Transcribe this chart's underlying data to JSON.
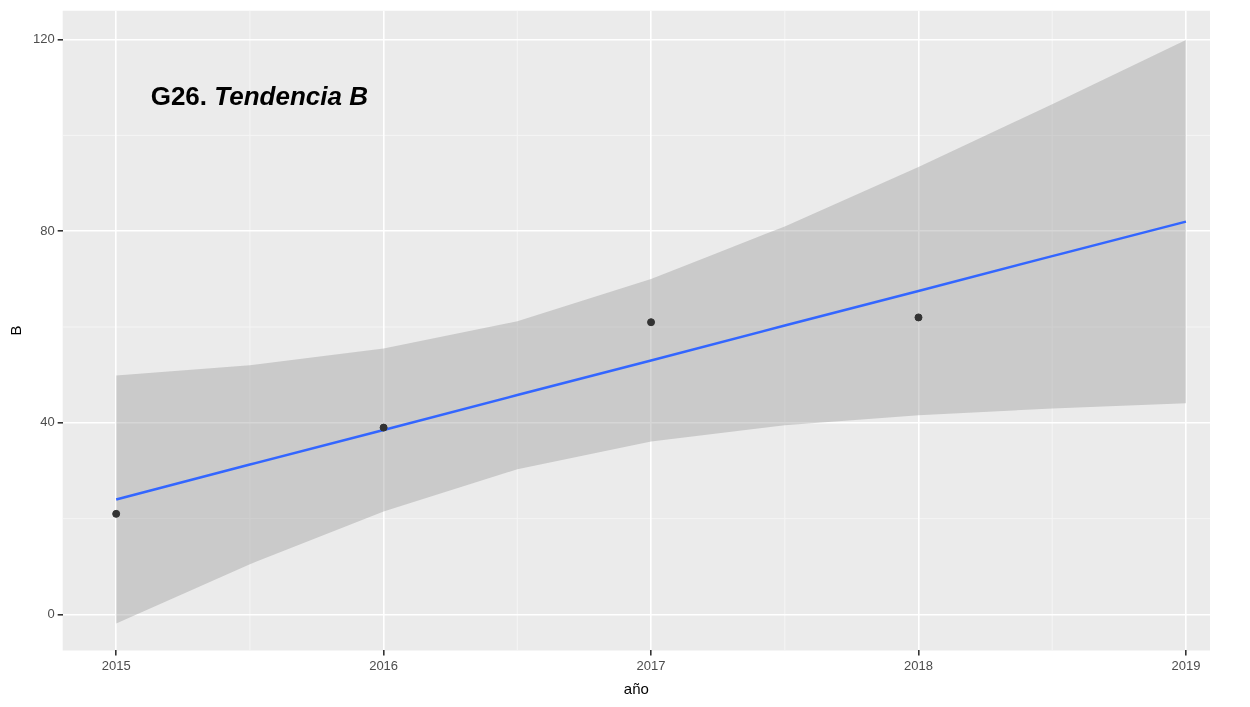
{
  "chart_data": {
    "type": "scatter",
    "title": "G26. Tendencia B",
    "xlabel": "año",
    "ylabel": "B",
    "xlim": [
      2014.8,
      2019.09
    ],
    "xticks": [
      2015,
      2016,
      2017,
      2018,
      2019
    ],
    "ylim": [
      -7.5,
      126
    ],
    "yticks": [
      0,
      40,
      80,
      120
    ],
    "grid": true,
    "legend": false,
    "marker": "circle",
    "series": [
      {
        "type": "scatter",
        "color": "#333333",
        "x": [
          2015,
          2016,
          2017,
          2018
        ],
        "values": [
          21,
          39,
          61,
          62
        ]
      },
      {
        "type": "line",
        "color": "#3366ff",
        "line_style": "solid",
        "marker": "none",
        "x": [
          2015,
          2015.5,
          2016,
          2016.5,
          2017,
          2017.5,
          2018,
          2018.5,
          2019
        ],
        "values": [
          24,
          31.3,
          38.5,
          45.8,
          53,
          60.3,
          67.5,
          74.8,
          82
        ],
        "lower": [
          -1.9,
          10.5,
          21.5,
          30.3,
          36.1,
          39.5,
          41.6,
          43.0,
          44.1
        ],
        "upper": [
          49.9,
          52.0,
          55.5,
          61.2,
          70.0,
          81.0,
          93.4,
          106.5,
          119.9
        ]
      }
    ]
  }
}
